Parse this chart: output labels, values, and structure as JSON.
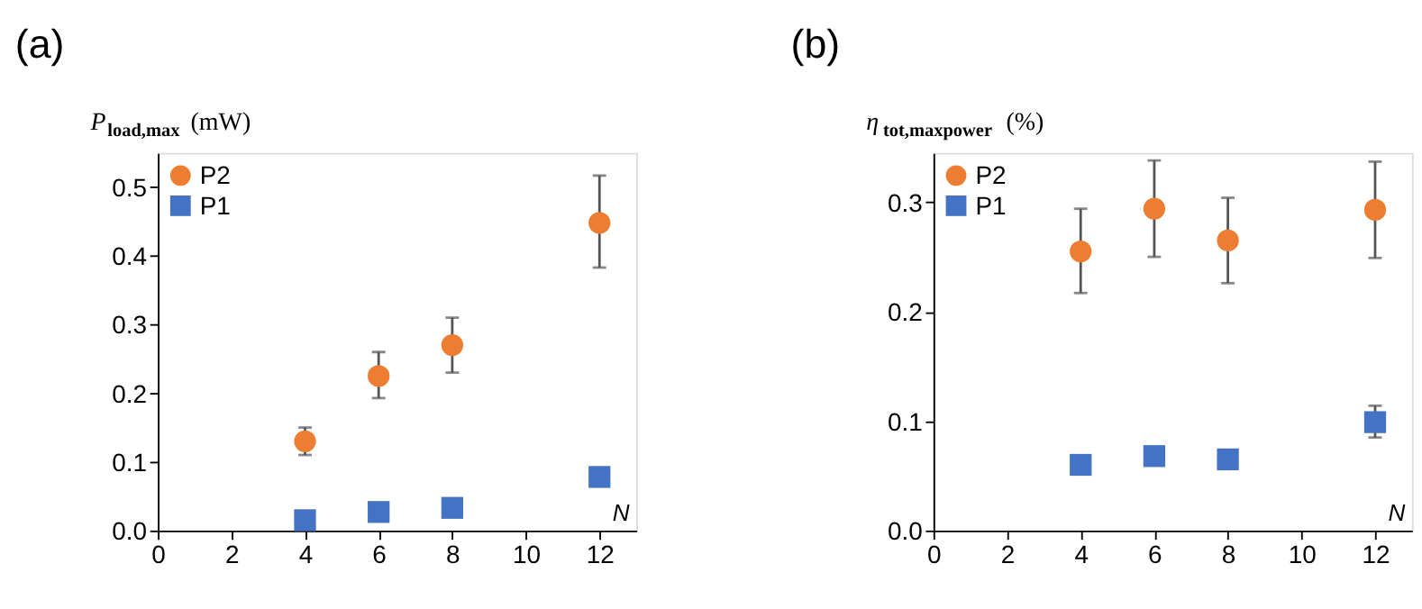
{
  "chart_data": [
    {
      "type": "scatter",
      "title": "(a)",
      "ylabel": "P$_{load,max}$ (mW)",
      "xlabel": "N",
      "xlim": [
        0,
        13
      ],
      "xticks": [
        0,
        2,
        4,
        6,
        8,
        10,
        12
      ],
      "ylim": [
        0,
        0.55
      ],
      "yticks": [
        {
          "value": 0,
          "label": "0.0"
        },
        0.1,
        0.2,
        0.3,
        0.4,
        0.5
      ],
      "grid": false,
      "legend": "top left",
      "series": [
        {
          "name": "P2",
          "color": "#ed7d31",
          "marker": "circle",
          "x": [
            4,
            6,
            8,
            12
          ],
          "values": [
            0.13,
            0.225,
            0.27,
            0.448
          ],
          "errors": [
            [
              0.11,
              0.15
            ],
            [
              0.193,
              0.26
            ],
            [
              0.23,
              0.31
            ],
            [
              0.383,
              0.517
            ]
          ]
        },
        {
          "name": "P1",
          "color": "#4472c4",
          "marker": "square",
          "x": [
            4,
            6,
            8,
            12
          ],
          "values": [
            0.015,
            0.027,
            0.033,
            0.078
          ]
        }
      ]
    },
    {
      "type": "scatter",
      "title": "(b)",
      "ylabel": "η$_{tot,maxpower}$ (%)",
      "xlabel": "N",
      "xlim": [
        0,
        13
      ],
      "xticks": [
        0,
        2,
        4,
        6,
        8,
        10,
        12
      ],
      "ylim": [
        0,
        0.345
      ],
      "yticks": [
        {
          "value": 0,
          "label": "0.0"
        },
        0.1,
        0.2,
        0.3
      ],
      "grid": false,
      "legend": "top left",
      "series": [
        {
          "name": "P2",
          "color": "#ed7d31",
          "marker": "circle",
          "x": [
            4,
            6,
            8,
            12
          ],
          "values": [
            0.255,
            0.294,
            0.265,
            0.293
          ],
          "errors": [
            [
              0.217,
              0.294
            ],
            [
              0.25,
              0.338
            ],
            [
              0.226,
              0.304
            ],
            [
              0.249,
              0.337
            ]
          ]
        },
        {
          "name": "P1",
          "color": "#4472c4",
          "marker": "square",
          "x": [
            4,
            6,
            8,
            12
          ],
          "values": [
            0.06,
            0.068,
            0.065,
            0.099
          ],
          "errors": [
            null,
            null,
            null,
            [
              0.085,
              0.114
            ]
          ]
        }
      ]
    }
  ]
}
